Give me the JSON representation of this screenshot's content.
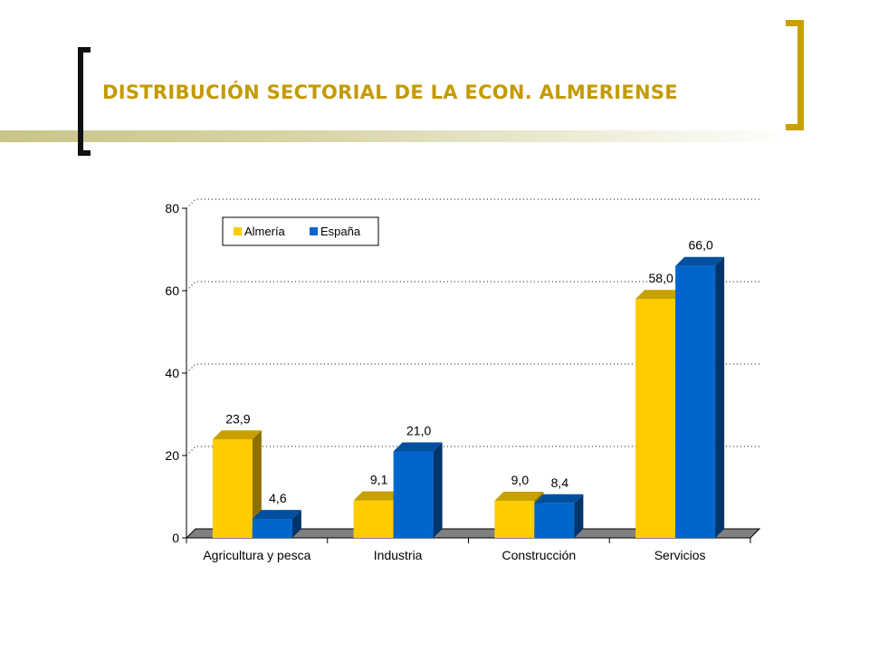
{
  "header": {
    "title": "DISTRIBUCIÓN SECTORIAL DE LA ECON. ALMERIENSE"
  },
  "chart_data": {
    "type": "bar",
    "categories": [
      "Agricultura y pesca",
      "Industria",
      "Construcción",
      "Servicios"
    ],
    "series": [
      {
        "name": "Almería",
        "values": [
          23.9,
          9.1,
          9.0,
          58.0
        ],
        "labels": [
          "23,9",
          "9,1",
          "9,0",
          "58,0"
        ],
        "color": "#ffcc00",
        "side_color": "#8c7000",
        "top_color": "#c8a000"
      },
      {
        "name": "España",
        "values": [
          4.6,
          21.0,
          8.4,
          66.0
        ],
        "labels": [
          "4,6",
          "21,0",
          "8,4",
          "66,0"
        ],
        "color": "#0066cc",
        "side_color": "#00356b",
        "top_color": "#00509f"
      }
    ],
    "y_ticks": [
      0,
      20,
      40,
      60,
      80
    ],
    "ylim": [
      0,
      80
    ],
    "grid": true,
    "legend": "top-left",
    "floor_color": "#808080"
  }
}
